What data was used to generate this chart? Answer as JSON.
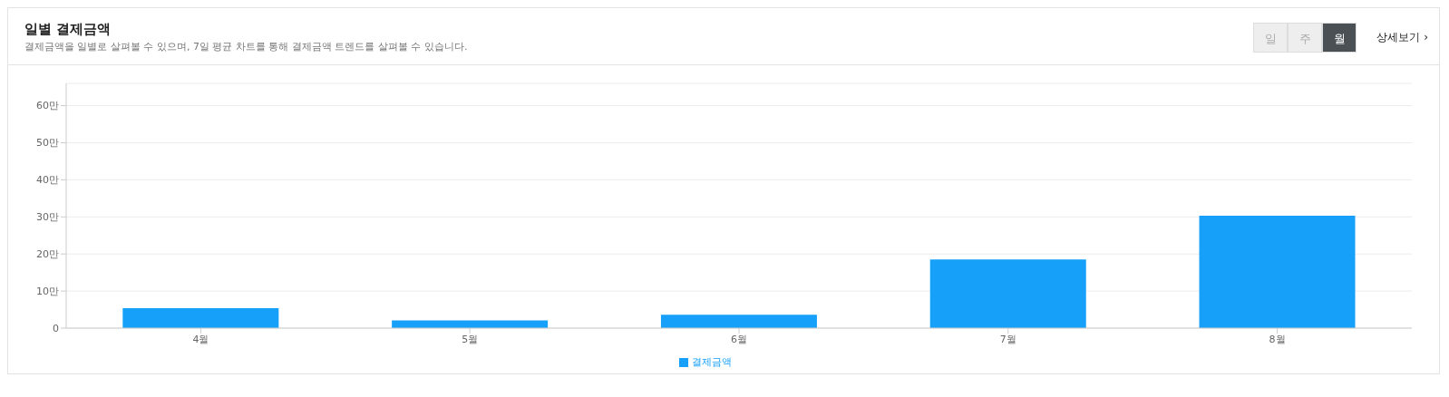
{
  "chart_data": {
    "type": "bar",
    "title": "일별 결제금액",
    "subtitle": "결제금액을 일별로 살펴볼 수 있으며, 7일 평균 차트를 통해 결제금액 트렌드를 살펴볼 수 있습니다.",
    "annotations": [
      "일",
      "주",
      "월",
      "상세보기 ›"
    ],
    "categories": [
      "4월",
      "5월",
      "6월",
      "7월",
      "8월"
    ],
    "series": [
      {
        "name": "결제금액",
        "color": "#16a0fa",
        "values": [
          5.4,
          2.1,
          3.6,
          18.5,
          30.3
        ]
      }
    ],
    "ylim": [
      0,
      66
    ],
    "yticks": [
      0,
      {
        "value": 10,
        "label": "10만"
      },
      {
        "value": 20,
        "label": "20만"
      },
      {
        "value": 30,
        "label": "30만"
      },
      {
        "value": 40,
        "label": "40만"
      },
      {
        "value": 50,
        "label": "50만"
      },
      {
        "value": 60,
        "label": "60만"
      }
    ],
    "grid": "y",
    "legend": "bottom"
  }
}
